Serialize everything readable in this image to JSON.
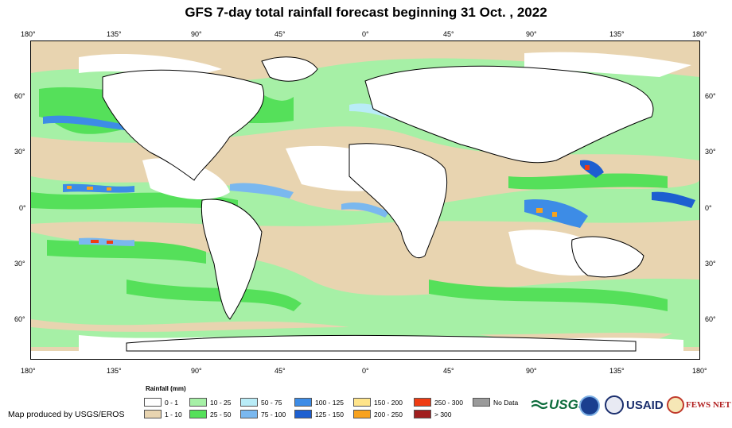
{
  "title": "GFS 7-day total rainfall forecast beginning 31 Oct. , 2022",
  "top_lon_labels": [
    "180°",
    "135°",
    "90°",
    "45°",
    "0°",
    "45°",
    "90°",
    "135°",
    "180°"
  ],
  "bottom_lon_labels": [
    "180°",
    "135°",
    "90°",
    "45°",
    "0°",
    "45°",
    "90°",
    "135°",
    "180°"
  ],
  "left_lat_labels": [
    "60°",
    "30°",
    "0°",
    "30°",
    "60°"
  ],
  "right_lat_labels": [
    "60°",
    "30°",
    "0°",
    "30°",
    "60°"
  ],
  "legend": {
    "title": "Rainfall (mm)",
    "items": [
      {
        "label": "0 - 1",
        "color": "#ffffff"
      },
      {
        "label": "1 - 10",
        "color": "#e8d4b0"
      },
      {
        "label": "10 - 25",
        "color": "#a6f0a6"
      },
      {
        "label": "25 - 50",
        "color": "#55e05a"
      },
      {
        "label": "50 - 75",
        "color": "#b9ecf7"
      },
      {
        "label": "75 - 100",
        "color": "#7ab8ef"
      },
      {
        "label": "100 - 125",
        "color": "#3d8ce6"
      },
      {
        "label": "125 - 150",
        "color": "#1d5fd0"
      },
      {
        "label": "150 - 200",
        "color": "#ffe48a"
      },
      {
        "label": "200 - 250",
        "color": "#f8a21e"
      },
      {
        "label": "250 - 300",
        "color": "#ef3c13"
      },
      {
        "label": "> 300",
        "color": "#a11f1f"
      },
      {
        "label": "No Data",
        "color": "#9a9a9a"
      }
    ]
  },
  "credit": "Map produced by USGS/EROS",
  "logos": {
    "usgs": "USGS",
    "usaid": "USAID",
    "fews": "FEWS NET"
  },
  "icons": {
    "usgs": "usgs-logo-icon",
    "noaa": "noaa-logo-icon",
    "usaid": "usaid-seal-icon",
    "fews": "fews-net-logo-icon"
  }
}
